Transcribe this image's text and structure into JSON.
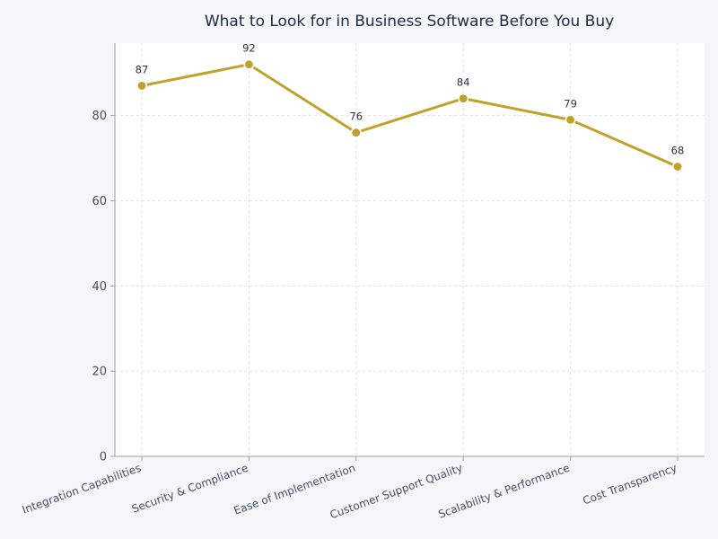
{
  "chart_data": {
    "type": "line",
    "title": "What to Look for in Business Software Before You Buy",
    "xlabel": "",
    "ylabel": "",
    "categories": [
      "Integration Capabilities",
      "Security & Compliance",
      "Ease of Implementation",
      "Customer Support Quality",
      "Scalability & Performance",
      "Cost Transparency"
    ],
    "series": [
      {
        "values": [
          87,
          92,
          76,
          84,
          79,
          68
        ]
      }
    ],
    "ylim": [
      0,
      97
    ],
    "yticks": [
      0,
      20,
      40,
      60,
      80
    ],
    "data_labels": true,
    "grid": true,
    "colors": {
      "line": "#c0a22a",
      "marker": "#c0a22a",
      "marker_edge": "#ffffff",
      "grid": "#dcdcdc",
      "plot_bg": "#ffffff",
      "page_bg": "#f5f6fa",
      "axis": "#9aa0ad"
    }
  }
}
